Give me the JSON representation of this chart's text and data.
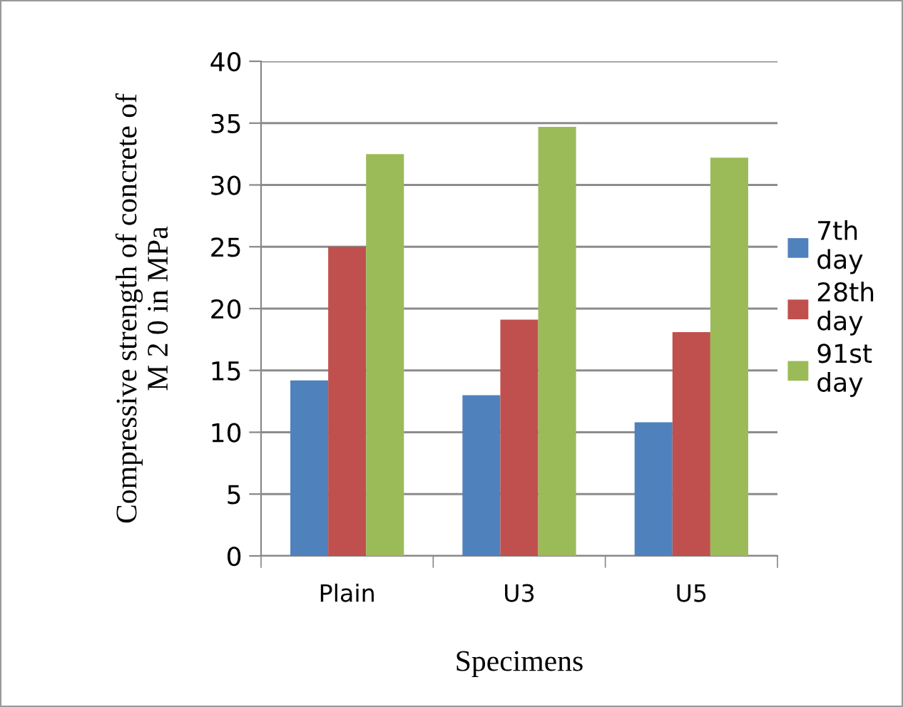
{
  "chart_data": {
    "type": "bar",
    "xlabel": "Specimens",
    "ylabel": "Compressive strength of concrete of\nM 2 0 in MPa",
    "categories": [
      "Plain",
      "U3",
      "U5"
    ],
    "series": [
      {
        "name": "7th day",
        "color": "#4f81bd",
        "values": [
          14.2,
          13.0,
          10.8
        ]
      },
      {
        "name": "28th day",
        "color": "#c0504d",
        "values": [
          25.0,
          19.1,
          18.1
        ]
      },
      {
        "name": "91st day",
        "color": "#9bbb59",
        "values": [
          32.5,
          34.7,
          32.2
        ]
      }
    ],
    "ylim": [
      0,
      40
    ],
    "yticks": [
      0,
      5,
      10,
      15,
      20,
      25,
      30,
      35,
      40
    ],
    "grid": "y",
    "legend": "right"
  }
}
